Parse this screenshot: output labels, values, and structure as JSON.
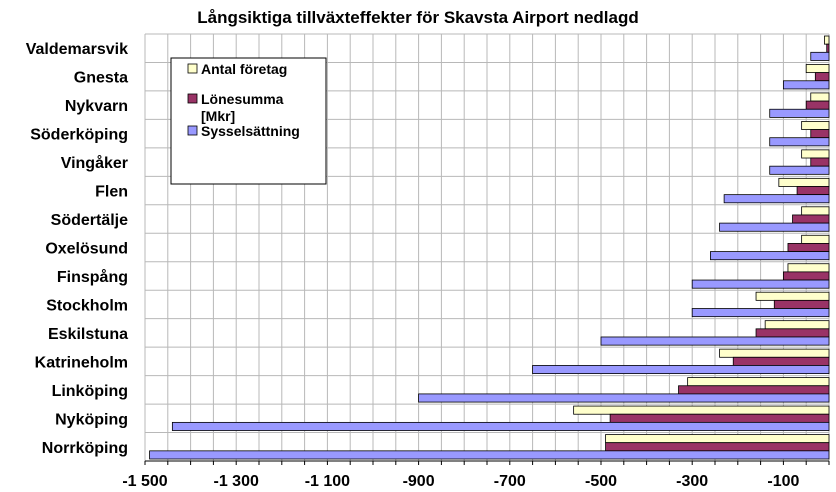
{
  "chart_data": {
    "type": "bar",
    "orientation": "horizontal",
    "title": "Långsiktiga tillväxteffekter för Skavsta Airport nedlagd",
    "xlabel": "",
    "ylabel": "",
    "xlim": [
      -1500,
      0
    ],
    "x_ticks": [
      -1500,
      -1300,
      -1100,
      -900,
      -700,
      -500,
      -300,
      -100
    ],
    "x_tick_labels": [
      "-1 500",
      "-1 300",
      "-1 100",
      "-900",
      "-700",
      "-500",
      "-300",
      "-100"
    ],
    "grid": true,
    "legend_position": "top-left",
    "categories": [
      "Valdemarsvik",
      "Gnesta",
      "Nykvarn",
      "Söderköping",
      "Vingåker",
      "Flen",
      "Södertälje",
      "Oxelösund",
      "Finspång",
      "Stockholm",
      "Eskilstuna",
      "Katrineholm",
      "Linköping",
      "Nyköping",
      "Norrköping"
    ],
    "series": [
      {
        "name": "Antal företag",
        "color": "#ffffcc",
        "values": [
          -10,
          -50,
          -40,
          -60,
          -60,
          -110,
          -60,
          -60,
          -90,
          -160,
          -140,
          -240,
          -310,
          -560,
          -490
        ]
      },
      {
        "name": "Lönesumma [Mkr]",
        "color": "#993366",
        "values": [
          -5,
          -30,
          -50,
          -40,
          -40,
          -70,
          -80,
          -90,
          -100,
          -120,
          -160,
          -210,
          -330,
          -480,
          -490
        ]
      },
      {
        "name": "Sysselsättning",
        "color": "#9999ff",
        "values": [
          -40,
          -100,
          -130,
          -130,
          -130,
          -230,
          -240,
          -260,
          -300,
          -300,
          -500,
          -650,
          -900,
          -1440,
          -1490
        ]
      }
    ]
  }
}
